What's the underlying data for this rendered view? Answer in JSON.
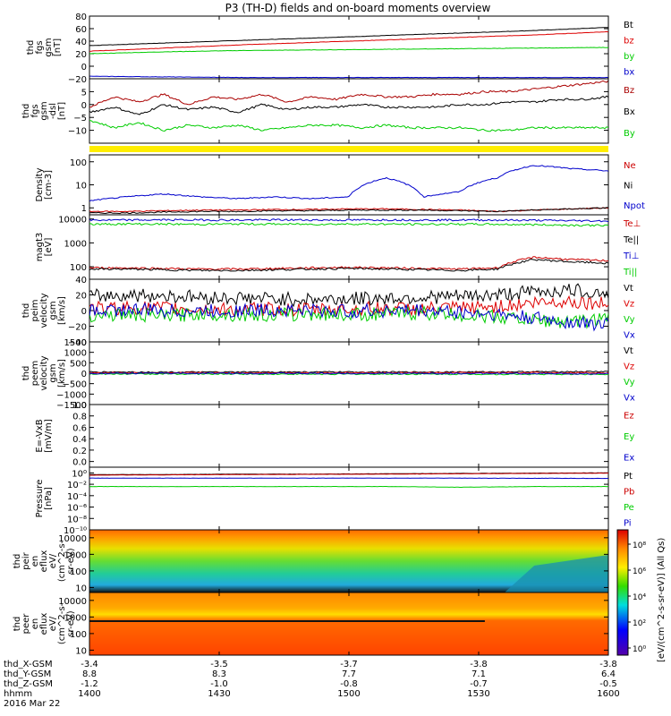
{
  "title": "P3 (TH-D) fields and on-board moments overview",
  "chart_data": [
    {
      "type": "line",
      "id": "fgs_gsm",
      "ylabel_lines": [
        "thd",
        "fgs",
        "gsm",
        "[nT]"
      ],
      "ylim": [
        -20,
        80
      ],
      "ticks": [
        -20,
        0,
        20,
        40,
        60,
        80
      ],
      "tick_labels": [
        "−20",
        "0",
        "20",
        "40",
        "60",
        "80"
      ],
      "x": [
        0,
        30,
        60,
        90,
        120,
        150,
        180,
        210
      ],
      "series": [
        {
          "name": "Bt",
          "color": "#000000",
          "values": [
            33,
            37,
            41,
            45,
            49,
            53,
            57,
            62
          ]
        },
        {
          "name": "bz",
          "color": "#dd0000",
          "values": [
            24,
            29,
            34,
            38,
            42,
            46,
            50,
            55
          ]
        },
        {
          "name": "by",
          "color": "#00cc00",
          "values": [
            20,
            23,
            25,
            26,
            27,
            28,
            29,
            30
          ]
        },
        {
          "name": "bx",
          "color": "#0000cc",
          "values": [
            -16,
            -17,
            -18,
            -18,
            -18,
            -18,
            -18,
            -18
          ]
        }
      ]
    },
    {
      "type": "line",
      "id": "fgs_dsl",
      "ylabel_lines": [
        "thd",
        "fgs",
        "gsm",
        "-dsl",
        "[nT]"
      ],
      "ylim": [
        -15,
        10
      ],
      "ticks": [
        -10,
        -5,
        0,
        5
      ],
      "tick_labels": [
        "−10",
        "−5",
        "0",
        "5"
      ],
      "x": [
        0,
        10,
        20,
        30,
        40,
        50,
        60,
        70,
        80,
        90,
        100,
        110,
        120,
        130,
        140,
        150,
        160,
        170,
        180,
        190,
        200,
        210
      ],
      "series": [
        {
          "name": "Bz",
          "color": "#aa0000",
          "values": [
            -1,
            3,
            1,
            4,
            0,
            3,
            2,
            4,
            1,
            3,
            2,
            4,
            3,
            3,
            4,
            4,
            5,
            5,
            6,
            7,
            8,
            9
          ]
        },
        {
          "name": "Bx",
          "color": "#000000",
          "values": [
            -3,
            -1,
            -4,
            0,
            -2,
            -1,
            -3,
            0,
            -2,
            -1,
            -1,
            0,
            -1,
            -1,
            -1,
            0,
            0,
            1,
            1,
            2,
            2,
            3
          ]
        },
        {
          "name": "By",
          "color": "#00cc00",
          "values": [
            -6,
            -9,
            -7,
            -10,
            -8,
            -9,
            -8,
            -10,
            -9,
            -8,
            -8,
            -9,
            -8,
            -9,
            -9,
            -9,
            -10,
            -10,
            -9,
            -9,
            -9,
            -9
          ]
        }
      ]
    },
    {
      "type": "line",
      "id": "density",
      "ylabel_lines": [
        "Density",
        "[cm-3]"
      ],
      "scale": "log",
      "ylim": [
        0.5,
        200
      ],
      "ticks": [
        1,
        10,
        100
      ],
      "tick_labels": [
        "1",
        "10",
        "100"
      ],
      "x": [
        0,
        15,
        30,
        45,
        60,
        75,
        90,
        105,
        120,
        135,
        150,
        165,
        180,
        195,
        210
      ],
      "series": [
        {
          "name": "Ne",
          "color": "#cc0000",
          "values": [
            0.7,
            0.7,
            0.75,
            0.8,
            0.8,
            0.85,
            0.85,
            0.9,
            0.9,
            0.85,
            0.8,
            0.7,
            0.8,
            0.9,
            1.0
          ]
        },
        {
          "name": "Ni",
          "color": "#000000",
          "values": [
            0.6,
            0.6,
            0.65,
            0.7,
            0.7,
            0.75,
            0.75,
            0.8,
            0.8,
            0.8,
            0.75,
            0.7,
            0.8,
            0.9,
            1.0
          ]
        },
        {
          "name": "Npot",
          "color": "#0000cc",
          "values": [
            2,
            3,
            4,
            3,
            2.5,
            3,
            2.5,
            3,
            20,
            3,
            5,
            20,
            70,
            50,
            40
          ]
        }
      ]
    },
    {
      "type": "line",
      "id": "temperature",
      "ylabel_lines": [
        "magt3",
        "[eV]"
      ],
      "scale": "log",
      "ylim": [
        30,
        15000
      ],
      "ticks": [
        100,
        1000,
        10000
      ],
      "tick_labels": [
        "100",
        "1000",
        "10000"
      ],
      "x": [
        0,
        15,
        30,
        45,
        60,
        75,
        90,
        105,
        120,
        135,
        150,
        165,
        180,
        195,
        210
      ],
      "series": [
        {
          "name": "Te⊥",
          "color": "#cc0000",
          "values": [
            90,
            90,
            85,
            80,
            80,
            85,
            90,
            95,
            90,
            85,
            80,
            90,
            250,
            200,
            180
          ]
        },
        {
          "name": "Te||",
          "color": "#000000",
          "values": [
            80,
            80,
            75,
            70,
            70,
            75,
            80,
            85,
            80,
            75,
            70,
            80,
            200,
            160,
            140
          ]
        },
        {
          "name": "Ti⊥",
          "color": "#0000cc",
          "values": [
            9000,
            9000,
            9200,
            9100,
            9000,
            9200,
            9100,
            9000,
            9200,
            9000,
            9100,
            9000,
            8800,
            8500,
            8300
          ]
        },
        {
          "name": "Ti||",
          "color": "#00cc00",
          "values": [
            6000,
            6200,
            6100,
            6000,
            6200,
            6100,
            6000,
            6200,
            6100,
            6000,
            6100,
            6000,
            5800,
            5500,
            5400
          ]
        }
      ]
    },
    {
      "type": "line",
      "id": "peim_velocity",
      "ylabel_lines": [
        "thd",
        "peim",
        "velocity",
        "gsm",
        "[km/s]"
      ],
      "ylim": [
        -40,
        40
      ],
      "ticks": [
        -40,
        -20,
        0,
        20,
        40
      ],
      "tick_labels": [
        "−40",
        "−20",
        "0",
        "20",
        "40"
      ],
      "x": [
        0,
        15,
        30,
        45,
        60,
        75,
        90,
        105,
        120,
        135,
        150,
        165,
        180,
        195,
        210
      ],
      "series": [
        {
          "name": "Vt",
          "color": "#000000",
          "values": [
            18,
            20,
            19,
            17,
            16,
            15,
            14,
            15,
            16,
            17,
            18,
            20,
            24,
            26,
            22
          ]
        },
        {
          "name": "Vz",
          "color": "#dd0000",
          "values": [
            2,
            4,
            3,
            2,
            1,
            2,
            1,
            2,
            3,
            2,
            3,
            5,
            10,
            12,
            8
          ]
        },
        {
          "name": "Vy",
          "color": "#00cc00",
          "values": [
            -6,
            -5,
            -7,
            -4,
            -5,
            -6,
            -4,
            -5,
            -4,
            -3,
            -6,
            -8,
            -12,
            -15,
            -10
          ]
        },
        {
          "name": "Vx",
          "color": "#0000cc",
          "values": [
            0,
            1,
            0,
            -1,
            0,
            1,
            0,
            -1,
            0,
            0,
            -2,
            -5,
            -10,
            -15,
            -18
          ]
        }
      ]
    },
    {
      "type": "line",
      "id": "peem_velocity",
      "ylabel_lines": [
        "thd",
        "peem",
        "velocity",
        "gsm",
        "[km/s]"
      ],
      "ylim": [
        -1500,
        1500
      ],
      "ticks": [
        -1500,
        -1000,
        -500,
        0,
        500,
        1000,
        1500
      ],
      "tick_labels": [
        "−1500",
        "−1000",
        "−500",
        "0",
        "500",
        "1000",
        "1500"
      ],
      "x": [
        0,
        30,
        60,
        90,
        120,
        150,
        180,
        210
      ],
      "series": [
        {
          "name": "Vt",
          "color": "#000000",
          "values": [
            60,
            50,
            55,
            60,
            55,
            60,
            70,
            80
          ]
        },
        {
          "name": "Vz",
          "color": "#dd0000",
          "values": [
            20,
            15,
            20,
            25,
            20,
            25,
            30,
            30
          ]
        },
        {
          "name": "Vy",
          "color": "#00cc00",
          "values": [
            -40,
            -35,
            -40,
            -45,
            -40,
            -45,
            -50,
            -50
          ]
        },
        {
          "name": "Vx",
          "color": "#0000cc",
          "values": [
            -10,
            -5,
            -10,
            -10,
            -10,
            -15,
            -20,
            -25
          ]
        }
      ]
    },
    {
      "type": "line",
      "id": "efield",
      "ylabel_lines": [
        "E=-VxB",
        "[mV/m]"
      ],
      "ylim": [
        -0.1,
        1.0
      ],
      "ticks": [
        0.0,
        0.2,
        0.4,
        0.6,
        0.8,
        1.0
      ],
      "tick_labels": [
        "0.0",
        "0.2",
        "0.4",
        "0.6",
        "0.8",
        "1.0"
      ],
      "x": [],
      "series": [
        {
          "name": "Ez",
          "color": "#cc0000",
          "values": []
        },
        {
          "name": "Ey",
          "color": "#00cc00",
          "values": []
        },
        {
          "name": "Ex",
          "color": "#0000cc",
          "values": []
        }
      ]
    },
    {
      "type": "line",
      "id": "pressure",
      "ylabel_lines": [
        "Pressure",
        "[nPa]"
      ],
      "scale": "log",
      "ylim": [
        1e-10,
        10
      ],
      "ticks": [
        1e-10,
        1e-08,
        1e-06,
        0.0001,
        0.01,
        1
      ],
      "tick_labels": [
        "10⁻¹⁰",
        "10⁻⁸",
        "10⁻⁶",
        "10⁻⁴",
        "10⁻²",
        "10⁰"
      ],
      "x": [
        0,
        30,
        60,
        90,
        120,
        150,
        180,
        210
      ],
      "series": [
        {
          "name": "Pt",
          "color": "#000000",
          "values": [
            0.5,
            0.5,
            0.6,
            0.6,
            0.7,
            0.8,
            0.9,
            1.0
          ]
        },
        {
          "name": "Pb",
          "color": "#cc0000",
          "values": [
            0.4,
            0.45,
            0.5,
            0.55,
            0.6,
            0.7,
            0.8,
            0.9
          ]
        },
        {
          "name": "Pe",
          "color": "#00cc00",
          "values": [
            0.004,
            0.004,
            0.004,
            0.004,
            0.004,
            0.003,
            0.004,
            0.004
          ]
        },
        {
          "name": "Pi",
          "color": "#0000cc",
          "values": [
            0.12,
            0.12,
            0.12,
            0.12,
            0.12,
            0.12,
            0.11,
            0.11
          ]
        }
      ]
    },
    {
      "type": "heatmap",
      "id": "peir_eflux",
      "ylabel_lines": [
        "thd",
        "peir",
        "en",
        "eflux",
        "eV/",
        "(cm^2-s-",
        "sr-eV)"
      ],
      "scale": "log",
      "ylim": [
        5,
        30000
      ],
      "ticks": [
        10,
        100,
        1000,
        10000
      ],
      "tick_labels": [
        "10",
        "100",
        "1000",
        "10000"
      ]
    },
    {
      "type": "heatmap",
      "id": "peer_eflux",
      "ylabel_lines": [
        "thd",
        "peer",
        "en",
        "eflux",
        "eV/",
        "(cm^2-s-",
        "sr-eV)"
      ],
      "scale": "log",
      "ylim": [
        5,
        30000
      ],
      "ticks": [
        10,
        100,
        1000,
        10000
      ],
      "tick_labels": [
        "10",
        "100",
        "1000",
        "10000"
      ]
    }
  ],
  "colorbar": {
    "label": "[eV/(cm^2-s-sr-eV)] (All Qs)",
    "ticks": [
      "10⁰",
      "10²",
      "10⁴",
      "10⁶",
      "10⁸"
    ]
  },
  "x_axis": {
    "row_labels": [
      "thd_X-GSM",
      "thd_Y-GSM",
      "thd_Z-GSM",
      "hhmm",
      "2016 Mar 22"
    ],
    "ticks": [
      {
        "t": 0,
        "x": "-3.4",
        "y": "8.8",
        "z": "-1.2",
        "hhmm": "1400"
      },
      {
        "t": 30,
        "x": "-3.5",
        "y": "8.3",
        "z": "-1.0",
        "hhmm": "1430"
      },
      {
        "t": 60,
        "x": "-3.7",
        "y": "7.7",
        "z": "-0.8",
        "hhmm": "1500"
      },
      {
        "t": 90,
        "x": "-3.8",
        "y": "7.1",
        "z": "-0.7",
        "hhmm": "1530"
      },
      {
        "t": 120,
        "x": "-3.8",
        "y": "6.4",
        "z": "-0.5",
        "hhmm": "1600"
      }
    ]
  }
}
